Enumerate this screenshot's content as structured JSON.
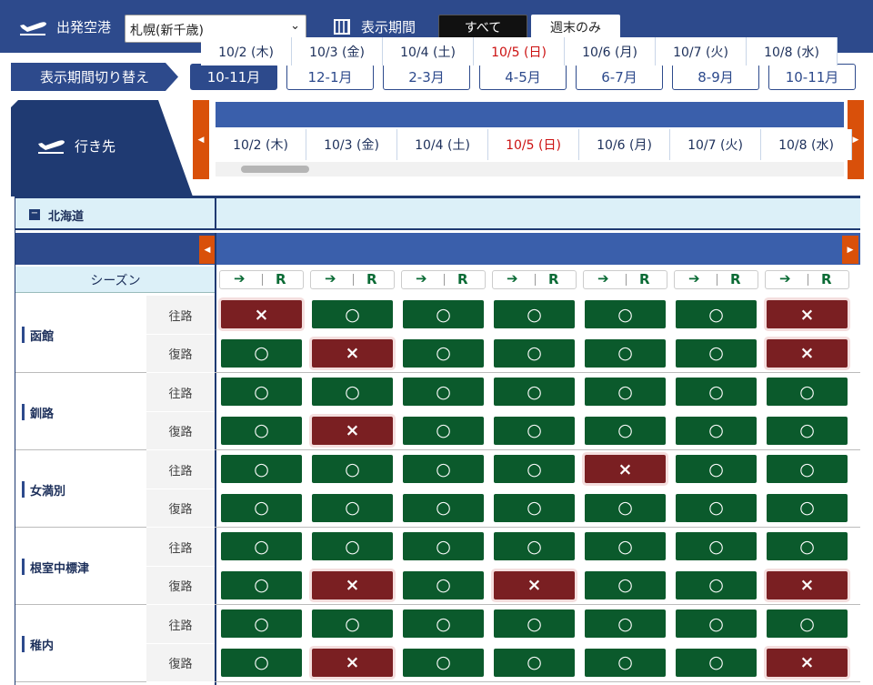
{
  "header": {
    "departure_label": "出発空港",
    "departure_airport": "札幌(新千歳)",
    "period_label": "表示期間",
    "period_options": [
      "すべて",
      "週末のみ"
    ]
  },
  "period_switch": {
    "label": "表示期間切り替え",
    "tabs": [
      "10-11月",
      "12-1月",
      "2-3月",
      "4-5月",
      "6-7月",
      "8-9月",
      "10-11月"
    ]
  },
  "destination_label": "行き先",
  "dates": [
    {
      "label": "10/2 (木)",
      "color": "#1c2f5a"
    },
    {
      "label": "10/3 (金)",
      "color": "#1c2f5a"
    },
    {
      "label": "10/4 (土)",
      "color": "#1c2f5a"
    },
    {
      "label": "10/5 (日)",
      "color": "#cc1111"
    },
    {
      "label": "10/6 (月)",
      "color": "#1c2f5a"
    },
    {
      "label": "10/7 (火)",
      "color": "#1c2f5a"
    },
    {
      "label": "10/8 (水)",
      "color": "#1c2f5a"
    }
  ],
  "region": {
    "name": "北海道",
    "season_label": "シーズン",
    "return_label": "R"
  },
  "routes": [
    {
      "name": "函館",
      "legs": [
        {
          "label": "往路",
          "status": [
            "×",
            "○",
            "○",
            "○",
            "○",
            "○",
            "×"
          ]
        },
        {
          "label": "復路",
          "status": [
            "○",
            "×",
            "○",
            "○",
            "○",
            "○",
            "×"
          ]
        }
      ]
    },
    {
      "name": "釧路",
      "legs": [
        {
          "label": "往路",
          "status": [
            "○",
            "○",
            "○",
            "○",
            "○",
            "○",
            "○"
          ]
        },
        {
          "label": "復路",
          "status": [
            "○",
            "×",
            "○",
            "○",
            "○",
            "○",
            "○"
          ]
        }
      ]
    },
    {
      "name": "女満別",
      "legs": [
        {
          "label": "往路",
          "status": [
            "○",
            "○",
            "○",
            "○",
            "×",
            "○",
            "○"
          ]
        },
        {
          "label": "復路",
          "status": [
            "○",
            "○",
            "○",
            "○",
            "○",
            "○",
            "○"
          ]
        }
      ]
    },
    {
      "name": "根室中標津",
      "legs": [
        {
          "label": "往路",
          "status": [
            "○",
            "○",
            "○",
            "○",
            "○",
            "○",
            "○"
          ]
        },
        {
          "label": "復路",
          "status": [
            "○",
            "×",
            "○",
            "×",
            "○",
            "○",
            "×"
          ]
        }
      ]
    },
    {
      "name": "稚内",
      "legs": [
        {
          "label": "往路",
          "status": [
            "○",
            "○",
            "○",
            "○",
            "○",
            "○",
            "○"
          ]
        },
        {
          "label": "復路",
          "status": [
            "○",
            "×",
            "○",
            "○",
            "○",
            "○",
            "×"
          ]
        }
      ]
    }
  ]
}
